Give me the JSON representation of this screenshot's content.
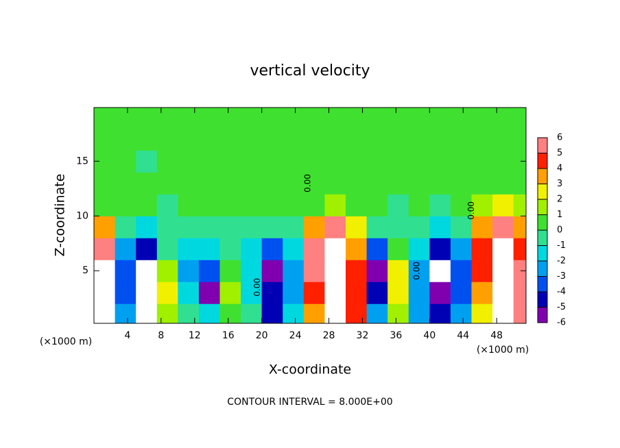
{
  "chart_data": {
    "type": "heatmap",
    "title": "vertical velocity",
    "x_label": "X-coordinate",
    "y_label": "Z-coordinate",
    "x_unit": "(×1000 m)",
    "footnote": "CONTOUR INTERVAL = 8.000E+00",
    "contour_label": "0.00",
    "xlim": [
      0,
      51.5
    ],
    "ylim": [
      0.2,
      19.9
    ],
    "xticks": [
      4,
      8,
      12,
      16,
      20,
      24,
      28,
      32,
      36,
      40,
      44,
      48
    ],
    "yticks": [
      5,
      10,
      15
    ],
    "x": [
      1.25,
      3.75,
      6.25,
      8.75,
      11.25,
      13.75,
      16.25,
      18.75,
      21.25,
      23.75,
      26.25,
      28.75,
      31.25,
      33.75,
      36.25,
      38.75,
      41.25,
      43.75,
      46.25,
      48.75,
      51.25
    ],
    "y": [
      1,
      3,
      5,
      7,
      9,
      11,
      13,
      15,
      17,
      19
    ],
    "z": [
      [
        8,
        -3,
        -7,
        1,
        -1,
        -2,
        0.5,
        -1,
        -5,
        -2,
        3,
        8,
        4,
        -3,
        1,
        -3,
        -5,
        -3,
        2,
        8,
        5
      ],
      [
        8,
        -4,
        -8,
        2,
        -2,
        -6,
        1,
        -2,
        -5,
        -3,
        4,
        8,
        4,
        -5,
        2,
        -3,
        -6,
        -4,
        3,
        8,
        5
      ],
      [
        8,
        -4,
        -8,
        1,
        -3,
        -4,
        0.5,
        -2,
        -6,
        -3,
        5,
        8,
        4,
        -6,
        2,
        -3,
        -8,
        -4,
        4,
        8,
        5
      ],
      [
        6,
        -3,
        -5,
        -1,
        -2,
        -2,
        -1,
        -2,
        -4,
        -2,
        5,
        7,
        3,
        -4,
        0.5,
        -2,
        -5,
        -3,
        4,
        8,
        4
      ],
      [
        3,
        -1,
        -2,
        -1,
        -1,
        -1,
        -0.5,
        -1,
        -1,
        -0.5,
        3,
        5,
        2,
        -1,
        -1,
        -1,
        -2,
        -1,
        3,
        5,
        3
      ],
      [
        0.5,
        0,
        0,
        -0.5,
        0,
        0,
        0,
        0,
        0,
        0,
        0.5,
        1,
        0.5,
        0,
        -0.5,
        0,
        -0.5,
        0,
        1,
        2,
        1
      ],
      [
        0,
        0,
        0,
        0,
        0,
        0,
        0,
        0,
        0,
        0,
        0,
        0,
        0,
        0,
        0,
        0,
        0,
        0,
        0,
        0.5,
        0
      ],
      [
        0,
        0,
        -0.5,
        0,
        0,
        0,
        0,
        0,
        0,
        0,
        0,
        0,
        0,
        0,
        0,
        0,
        0,
        0,
        0,
        0,
        0
      ],
      [
        0,
        0,
        0,
        0,
        0,
        0,
        0,
        0,
        0,
        0,
        0,
        0,
        0,
        0,
        0,
        0,
        0,
        0,
        0,
        0,
        0
      ],
      [
        0,
        0,
        0,
        0,
        0,
        0,
        0,
        0,
        0,
        0,
        0,
        0,
        0,
        0,
        0,
        0,
        0,
        0,
        0,
        0,
        0
      ]
    ],
    "clim": [
      -6,
      6
    ],
    "cticks": [
      -6,
      -5,
      -4,
      -3,
      -2,
      -1,
      0,
      1,
      2,
      3,
      4,
      5,
      6
    ],
    "colors": [
      "#8000b0",
      "#0000b4",
      "#0050f0",
      "#00a0f0",
      "#00d8e0",
      "#30e090",
      "#40e030",
      "#a0f000",
      "#f0f000",
      "#ffa000",
      "#ff2000",
      "#ff8080"
    ],
    "out_of_range_color": "#ffffff"
  }
}
